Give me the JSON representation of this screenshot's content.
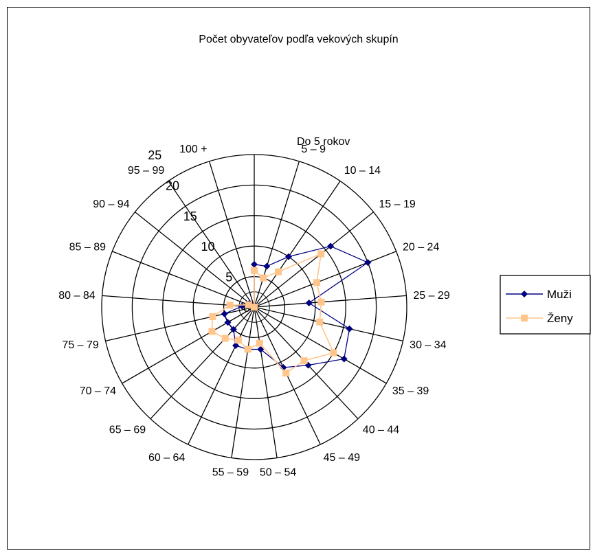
{
  "chart_data": {
    "type": "radar",
    "title": "Počet obyvateľov podľa vekových skupín",
    "categories": [
      "Do 5 rokov",
      "5 – 9",
      "10 – 14",
      "15 – 19",
      "20 – 24",
      "25 – 29",
      "30 – 34",
      "35 – 39",
      "40 – 44",
      "45 – 49",
      "50 – 54",
      "55 – 59",
      "60 – 64",
      "65 – 69",
      "70 – 74",
      "75 – 79",
      "80 – 84",
      "85 – 89",
      "90 – 94",
      "95 – 99",
      "100 +"
    ],
    "rmax": 25,
    "ticks": [
      0,
      5,
      10,
      15,
      20,
      25
    ],
    "grid": true,
    "legend_position": "right",
    "series": [
      {
        "name": "Muži",
        "color": "#000080",
        "marker": "diamond",
        "values": [
          7,
          7,
          10,
          16,
          20,
          9,
          16,
          17,
          13,
          11,
          7,
          7,
          7,
          5,
          5,
          5,
          2,
          1,
          1,
          0,
          0
        ]
      },
      {
        "name": "Ženy",
        "color": "#FFC58A",
        "marker": "square",
        "values": [
          6,
          5,
          7,
          14,
          11,
          11,
          11,
          15,
          12,
          12,
          6,
          7,
          6,
          7,
          8,
          7,
          4,
          1,
          0,
          0,
          0
        ]
      }
    ]
  }
}
